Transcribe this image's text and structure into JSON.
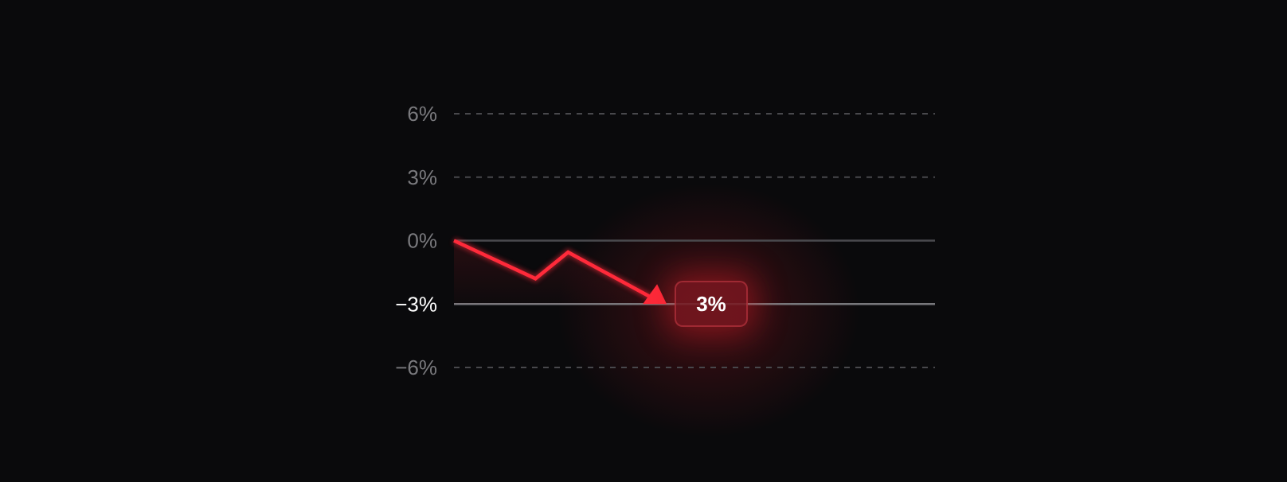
{
  "chart_data": {
    "type": "line",
    "title": "",
    "xlabel": "",
    "ylabel": "",
    "ylim": [
      -6,
      6
    ],
    "xlim": [
      0,
      5.9
    ],
    "y_ticks": [
      "6%",
      "3%",
      "0%",
      "-3%",
      "-6%"
    ],
    "y_tick_values": [
      6,
      3,
      0,
      -3,
      -6
    ],
    "highlighted_tick": "-3%",
    "grid": true,
    "series": [
      {
        "x": [
          0,
          1,
          1.4,
          2.57
        ],
        "y": [
          0,
          -1.8,
          -0.55,
          -3
        ],
        "color": "#ff2a3a",
        "end_marker": "arrow"
      }
    ],
    "annotation": {
      "label": "3%",
      "y": -3
    },
    "colors": {
      "background": "#0a0a0c",
      "line": "#ff2a3a",
      "grid": "#4a4a4e",
      "tick": "#7a7a7e"
    }
  }
}
